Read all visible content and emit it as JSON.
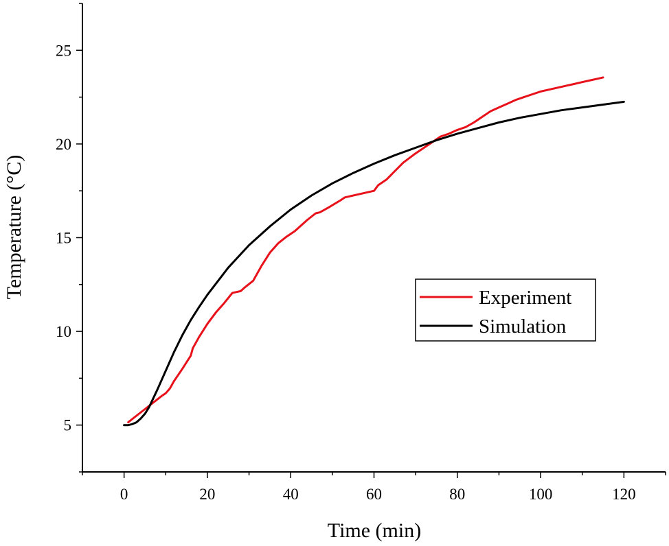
{
  "chart_data": {
    "type": "line",
    "title": "",
    "xlabel": "Time (min)",
    "ylabel": "Temperature (°C)",
    "xlim": [
      -10,
      130
    ],
    "ylim": [
      2.5,
      27.5
    ],
    "xticks": [
      0,
      20,
      40,
      60,
      80,
      100,
      120
    ],
    "yticks": [
      5,
      10,
      15,
      20,
      25
    ],
    "grid": false,
    "legend_position": "center-right",
    "series": [
      {
        "name": "Experiment",
        "color": "#e8121b",
        "x": [
          1,
          3,
          5,
          7,
          9,
          10,
          11,
          12,
          14,
          16,
          16.5,
          18,
          20,
          22,
          24,
          26,
          27,
          28,
          29,
          31,
          33,
          35,
          37,
          39,
          41,
          43,
          44,
          46,
          47,
          49,
          52,
          53,
          56,
          60,
          61,
          63,
          65,
          67,
          70,
          72,
          74,
          76,
          78,
          80,
          82,
          84,
          86,
          88,
          90,
          92,
          94,
          96,
          98,
          100,
          102,
          104,
          106,
          108,
          110,
          112,
          114,
          115
        ],
        "values": [
          5.15,
          5.5,
          5.85,
          6.2,
          6.55,
          6.7,
          6.95,
          7.35,
          8.0,
          8.7,
          9.1,
          9.7,
          10.4,
          11.0,
          11.5,
          12.05,
          12.1,
          12.15,
          12.35,
          12.7,
          13.5,
          14.2,
          14.7,
          15.05,
          15.35,
          15.75,
          15.95,
          16.3,
          16.35,
          16.6,
          17.0,
          17.15,
          17.3,
          17.5,
          17.8,
          18.1,
          18.55,
          19.0,
          19.5,
          19.8,
          20.1,
          20.4,
          20.55,
          20.75,
          20.9,
          21.15,
          21.45,
          21.75,
          21.95,
          22.15,
          22.35,
          22.5,
          22.65,
          22.8,
          22.9,
          23.0,
          23.1,
          23.2,
          23.3,
          23.4,
          23.5,
          23.55
        ]
      },
      {
        "name": "Simulation",
        "color": "#000000",
        "x": [
          0,
          1,
          2,
          3,
          4,
          5,
          6,
          8,
          10,
          12,
          14,
          16,
          18,
          20,
          25,
          30,
          35,
          40,
          45,
          50,
          55,
          60,
          65,
          70,
          75,
          80,
          85,
          90,
          95,
          100,
          105,
          110,
          115,
          120
        ],
        "values": [
          5.0,
          5.0,
          5.05,
          5.15,
          5.35,
          5.6,
          5.95,
          6.9,
          7.9,
          8.9,
          9.8,
          10.6,
          11.3,
          11.95,
          13.4,
          14.6,
          15.6,
          16.5,
          17.25,
          17.9,
          18.45,
          18.95,
          19.4,
          19.8,
          20.2,
          20.55,
          20.85,
          21.15,
          21.4,
          21.6,
          21.8,
          21.95,
          22.1,
          22.25
        ]
      }
    ]
  }
}
